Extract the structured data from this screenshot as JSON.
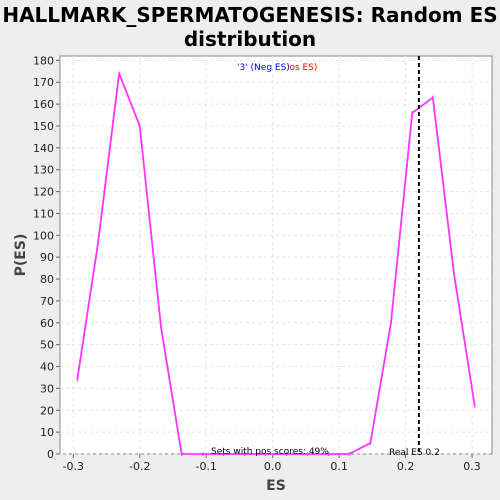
{
  "chart_data": {
    "type": "line",
    "title_line1": "HALLMARK_SPERMATOGENESIS: Random ES",
    "title_line2": "distribution",
    "xlabel": "ES",
    "ylabel": "P(ES)",
    "xlim": [
      -0.32,
      0.33
    ],
    "ylim": [
      0,
      182
    ],
    "x_ticks": [
      -0.3,
      -0.2,
      -0.1,
      0.0,
      0.1,
      0.2,
      0.3
    ],
    "x_tick_labels": [
      "-0.3",
      "-0.2",
      "-0.1",
      "0.0",
      "0.1",
      "0.2",
      "0.3"
    ],
    "y_ticks": [
      0,
      10,
      20,
      30,
      40,
      50,
      60,
      70,
      80,
      90,
      100,
      110,
      120,
      130,
      140,
      150,
      160,
      170,
      180
    ],
    "grid": true,
    "series": [
      {
        "color": "#ff33ff",
        "points": [
          [
            -0.294,
            34
          ],
          [
            -0.263,
            96
          ],
          [
            -0.231,
            174
          ],
          [
            -0.2,
            150
          ],
          [
            -0.168,
            58
          ],
          [
            -0.137,
            0
          ],
          [
            -0.105,
            0
          ],
          [
            -0.074,
            0
          ],
          [
            -0.042,
            0
          ],
          [
            -0.011,
            0
          ],
          [
            0.021,
            0
          ],
          [
            0.052,
            0
          ],
          [
            0.084,
            0
          ],
          [
            0.115,
            0
          ],
          [
            0.147,
            5
          ],
          [
            0.178,
            60
          ],
          [
            0.21,
            156
          ],
          [
            0.241,
            163
          ],
          [
            0.273,
            82
          ],
          [
            0.304,
            22
          ]
        ]
      }
    ],
    "real_es": 0.22,
    "real_es_color": "#000000",
    "legend": {
      "placement": "top-center",
      "neg_label": "'3' (Neg ES)",
      "neg_color": "#0000ff",
      "pos_label": "'os ES)",
      "pos_color": "#ff0000"
    },
    "annotations": {
      "pos_scores": "Sets with pos scores: 49%",
      "real_es_label": "Real ES 0.2"
    }
  }
}
